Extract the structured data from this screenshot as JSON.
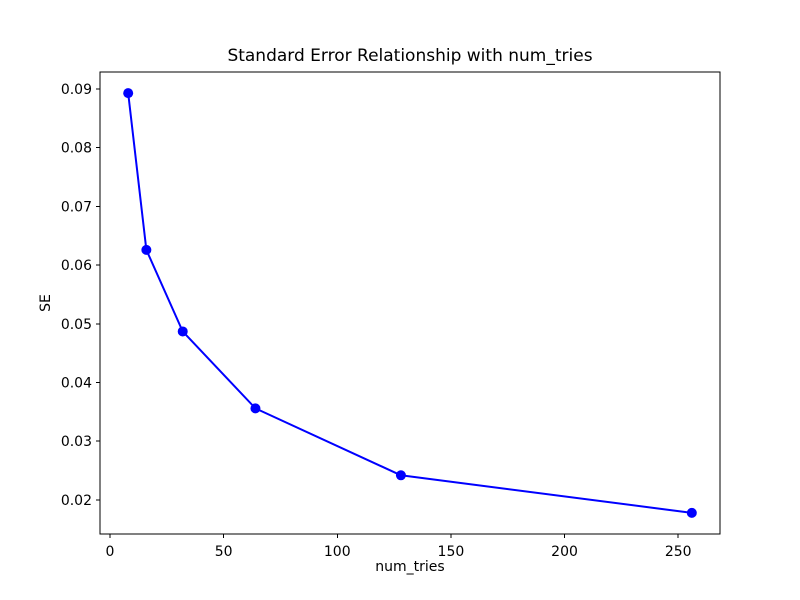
{
  "figure": {
    "background": "#ffffff"
  },
  "chart_data": {
    "type": "line",
    "title": "Standard Error Relationship with num_tries",
    "xlabel": "num_tries",
    "ylabel": "SE",
    "series": [
      {
        "name": "SE",
        "x": [
          8,
          16,
          32,
          64,
          128,
          256
        ],
        "y": [
          0.0893,
          0.0626,
          0.0487,
          0.0356,
          0.0242,
          0.0178
        ]
      }
    ],
    "line_color": "#0000ff",
    "marker": "circle",
    "marker_size_px": 10,
    "xlim": [
      -4.4,
      268.4
    ],
    "ylim": [
      0.0142,
      0.0929
    ],
    "xticks": [
      0,
      50,
      100,
      150,
      200,
      250
    ],
    "yticks": [
      0.02,
      0.03,
      0.04,
      0.05,
      0.06,
      0.07,
      0.08,
      0.09
    ],
    "ytick_decimals": 2,
    "grid": false,
    "legend_position": "none",
    "axes_color": "#000000"
  }
}
